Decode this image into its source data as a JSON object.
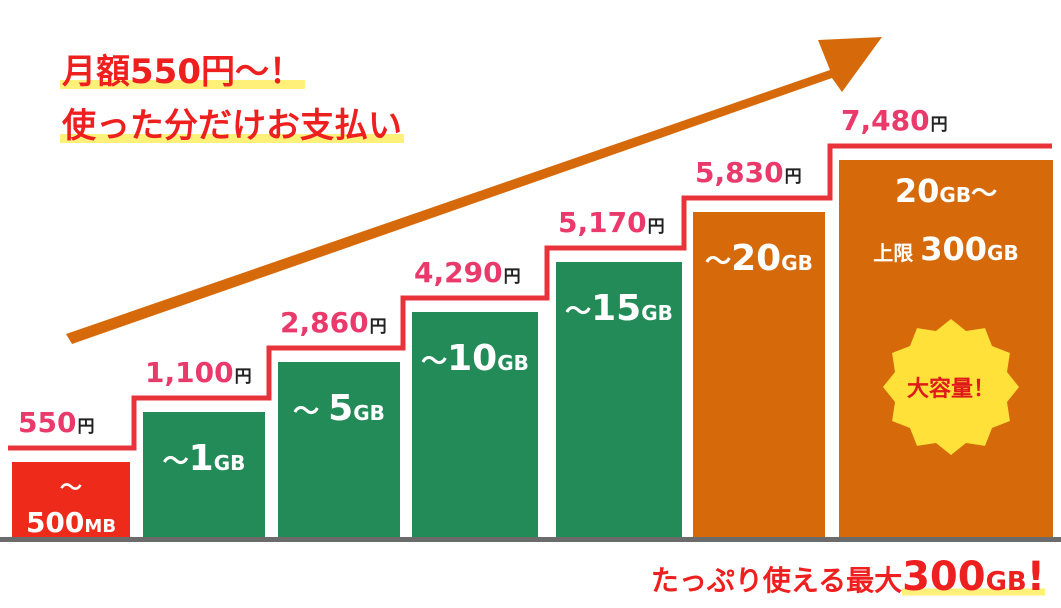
{
  "headline": {
    "line1": "月額550円〜！",
    "line2": "使った分だけお支払い"
  },
  "chart_data": {
    "type": "bar",
    "bars": [
      {
        "price": "550",
        "capacity_lines": [
          "〜",
          "500MB"
        ],
        "color": "#ee2a1b",
        "height_rank": 1
      },
      {
        "price": "1,100",
        "capacity_lines": [
          "〜1GB"
        ],
        "color": "#238b57",
        "height_rank": 2
      },
      {
        "price": "2,860",
        "capacity_lines": [
          "〜 5GB"
        ],
        "color": "#238b57",
        "height_rank": 3
      },
      {
        "price": "4,290",
        "capacity_lines": [
          "〜10GB"
        ],
        "color": "#238b57",
        "height_rank": 4
      },
      {
        "price": "5,170",
        "capacity_lines": [
          "〜15GB"
        ],
        "color": "#238b57",
        "height_rank": 5
      },
      {
        "price": "5,830",
        "capacity_lines": [
          "〜20GB"
        ],
        "color": "#d66a0a",
        "height_rank": 6
      },
      {
        "price": "7,480",
        "capacity_lines": [
          "20GB〜",
          "上限 300GB"
        ],
        "color": "#d66a0a",
        "height_rank": 7
      }
    ],
    "price_unit": "円",
    "step_line_color": "#e8333a",
    "arrow_color": "#d66a0a",
    "baseline_color": "#6b6b6b"
  },
  "badge": {
    "text": "大容量！",
    "color": "#ffe13a"
  },
  "footer": {
    "prefix": "たっぷり使える最大",
    "amount": "300",
    "unit": "GB",
    "suffix": "!"
  }
}
